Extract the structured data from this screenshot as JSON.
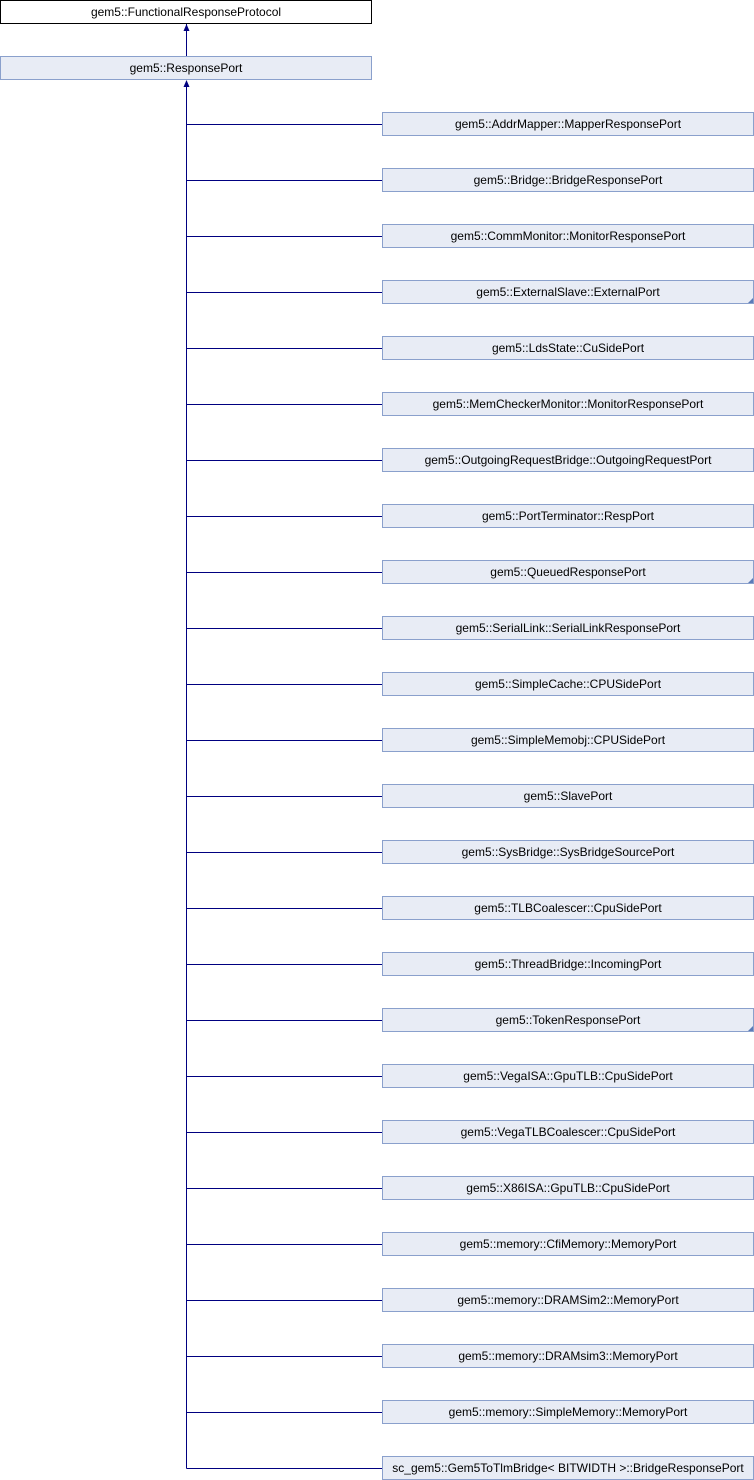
{
  "diagram": {
    "root": {
      "label": "gem5::FunctionalResponseProtocol"
    },
    "base": {
      "label": "gem5::ResponsePort"
    },
    "children": [
      {
        "label": "gem5::AddrMapper::MapperResponsePort",
        "has_more": false
      },
      {
        "label": "gem5::Bridge::BridgeResponsePort",
        "has_more": false
      },
      {
        "label": "gem5::CommMonitor::MonitorResponsePort",
        "has_more": false
      },
      {
        "label": "gem5::ExternalSlave::ExternalPort",
        "has_more": true
      },
      {
        "label": "gem5::LdsState::CuSidePort",
        "has_more": false
      },
      {
        "label": "gem5::MemCheckerMonitor::MonitorResponsePort",
        "has_more": false
      },
      {
        "label": "gem5::OutgoingRequestBridge::OutgoingRequestPort",
        "has_more": false
      },
      {
        "label": "gem5::PortTerminator::RespPort",
        "has_more": false
      },
      {
        "label": "gem5::QueuedResponsePort",
        "has_more": true
      },
      {
        "label": "gem5::SerialLink::SerialLinkResponsePort",
        "has_more": false
      },
      {
        "label": "gem5::SimpleCache::CPUSidePort",
        "has_more": false
      },
      {
        "label": "gem5::SimpleMemobj::CPUSidePort",
        "has_more": false
      },
      {
        "label": "gem5::SlavePort",
        "has_more": false
      },
      {
        "label": "gem5::SysBridge::SysBridgeSourcePort",
        "has_more": false
      },
      {
        "label": "gem5::TLBCoalescer::CpuSidePort",
        "has_more": false
      },
      {
        "label": "gem5::ThreadBridge::IncomingPort",
        "has_more": false
      },
      {
        "label": "gem5::TokenResponsePort",
        "has_more": true
      },
      {
        "label": "gem5::VegaISA::GpuTLB::CpuSidePort",
        "has_more": false
      },
      {
        "label": "gem5::VegaTLBCoalescer::CpuSidePort",
        "has_more": false
      },
      {
        "label": "gem5::X86ISA::GpuTLB::CpuSidePort",
        "has_more": false
      },
      {
        "label": "gem5::memory::CfiMemory::MemoryPort",
        "has_more": false
      },
      {
        "label": "gem5::memory::DRAMSim2::MemoryPort",
        "has_more": false
      },
      {
        "label": "gem5::memory::DRAMsim3::MemoryPort",
        "has_more": false
      },
      {
        "label": "gem5::memory::SimpleMemory::MemoryPort",
        "has_more": false
      },
      {
        "label": "sc_gem5::Gem5ToTlmBridge< BITWIDTH >::BridgeResponsePort",
        "has_more": false
      }
    ],
    "colors": {
      "edge": "#000080",
      "node_fill": "#e8ecf5",
      "node_border": "#8aa0cc",
      "root_border": "#000000"
    }
  }
}
